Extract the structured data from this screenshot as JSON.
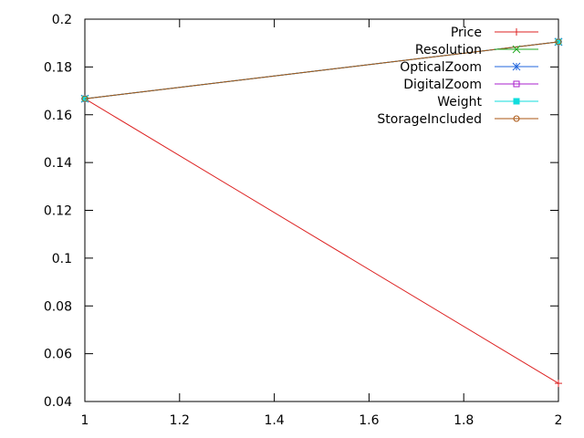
{
  "chart_data": {
    "type": "line",
    "title": "",
    "xlabel": "",
    "ylabel": "",
    "xlim": [
      1,
      2
    ],
    "ylim": [
      0.04,
      0.2
    ],
    "x_ticks": [
      "1",
      "1.2",
      "1.4",
      "1.6",
      "1.8",
      "2"
    ],
    "y_ticks": [
      "0.04",
      "0.06",
      "0.08",
      "0.1",
      "0.12",
      "0.14",
      "0.16",
      "0.18",
      "0.2"
    ],
    "grid": false,
    "legend_position": "top-right",
    "x": [
      1,
      2
    ],
    "series": [
      {
        "name": "Price",
        "values": [
          0.1667,
          0.0476
        ],
        "color": "#dd2222",
        "marker": "plus"
      },
      {
        "name": "Resolution",
        "values": [
          0.1667,
          0.1905
        ],
        "color": "#22aa22",
        "marker": "cross"
      },
      {
        "name": "OpticalZoom",
        "values": [
          0.1667,
          0.1905
        ],
        "color": "#2266dd",
        "marker": "star"
      },
      {
        "name": "DigitalZoom",
        "values": [
          0.1667,
          0.1905
        ],
        "color": "#aa22cc",
        "marker": "open-square"
      },
      {
        "name": "Weight",
        "values": [
          0.1667,
          0.1905
        ],
        "color": "#11dddd",
        "marker": "filled-square"
      },
      {
        "name": "StorageIncluded",
        "values": [
          0.1667,
          0.1905
        ],
        "color": "#aa5511",
        "marker": "open-circle"
      }
    ]
  }
}
